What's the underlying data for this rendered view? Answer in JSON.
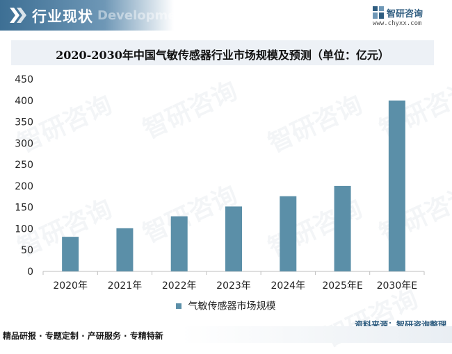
{
  "header": {
    "title": "行业现状",
    "subtitle_en": "Development history"
  },
  "brand": {
    "name": "智研咨询",
    "url": "www.chyxx.com"
  },
  "watermark_text": "智研咨询",
  "chart_data": {
    "type": "bar",
    "title": "2020-2030年中国气敏传感器行业市场规模及预测（单位：亿元）",
    "categories": [
      "2020年",
      "2021年",
      "2022年",
      "2023年",
      "2024年",
      "2025年E",
      "2030年E"
    ],
    "series": [
      {
        "name": "气敏传感器市场规模",
        "values": [
          81,
          101,
          129,
          152,
          176,
          200,
          400
        ]
      }
    ],
    "ylim": [
      0,
      450
    ],
    "yticks": [
      0,
      50,
      100,
      150,
      200,
      250,
      300,
      350,
      400,
      450
    ],
    "grid": false,
    "legend": "bottom",
    "bar_color": "#5b8fa8"
  },
  "source_text": "资料来源：智研咨询整理",
  "footer_text": "精品研报 · 专题定制 · 产研服务 · 专精特新"
}
